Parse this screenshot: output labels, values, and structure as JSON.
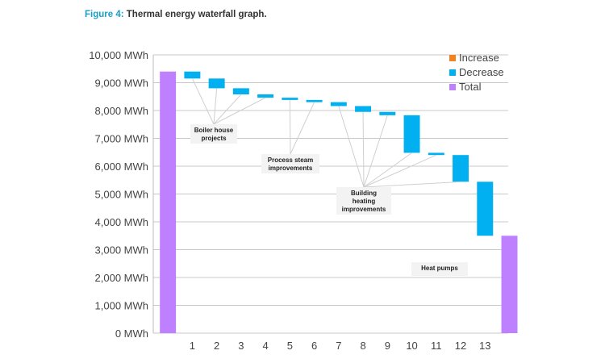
{
  "caption": {
    "figure_label": "Figure 4:",
    "text": "Thermal energy waterfall graph."
  },
  "colors": {
    "increase": "#f58220",
    "decrease": "#00b0f0",
    "total": "#bf80ff",
    "grid": "#c8c8c8",
    "axis_text": "#444444"
  },
  "chart_data": {
    "type": "waterfall",
    "title": "",
    "xlabel": "",
    "ylabel": "",
    "ylim": [
      0,
      10000
    ],
    "y_ticks": [
      "0 MWh",
      "1,000 MWh",
      "2,000 MWh",
      "3,000 MWh",
      "4,000 MWh",
      "5,000 MWh",
      "6,000 MWh",
      "7,000 MWh",
      "8,000 MWh",
      "9,000 MWh",
      "10,000 MWh"
    ],
    "y_tick_values": [
      0,
      1000,
      2000,
      3000,
      4000,
      5000,
      6000,
      7000,
      8000,
      9000,
      10000
    ],
    "grid": true,
    "legend_position": "top-right",
    "legend": [
      {
        "label": "Increase",
        "kind": "increase"
      },
      {
        "label": "Decrease",
        "kind": "decrease"
      },
      {
        "label": "Total",
        "kind": "total"
      }
    ],
    "categories": [
      "",
      "1",
      "2",
      "3",
      "4",
      "5",
      "6",
      "7",
      "8",
      "9",
      "10",
      "11",
      "12",
      "13",
      ""
    ],
    "bars": [
      {
        "kind": "total",
        "start": 0,
        "end": 9400
      },
      {
        "kind": "decrease",
        "start": 9400,
        "end": 9150
      },
      {
        "kind": "decrease",
        "start": 9150,
        "end": 8800
      },
      {
        "kind": "decrease",
        "start": 8800,
        "end": 8580
      },
      {
        "kind": "decrease",
        "start": 8580,
        "end": 8460
      },
      {
        "kind": "decrease",
        "start": 8460,
        "end": 8380
      },
      {
        "kind": "decrease",
        "start": 8380,
        "end": 8300
      },
      {
        "kind": "decrease",
        "start": 8300,
        "end": 8160
      },
      {
        "kind": "decrease",
        "start": 8160,
        "end": 7950
      },
      {
        "kind": "decrease",
        "start": 7950,
        "end": 7830
      },
      {
        "kind": "decrease",
        "start": 7830,
        "end": 6480
      },
      {
        "kind": "decrease",
        "start": 6480,
        "end": 6400
      },
      {
        "kind": "decrease",
        "start": 6400,
        "end": 5440
      },
      {
        "kind": "decrease",
        "start": 5440,
        "end": 3500
      },
      {
        "kind": "total",
        "start": 0,
        "end": 3500
      }
    ],
    "annotations": [
      {
        "lines": [
          "Boiler house",
          "projects"
        ],
        "targets": [
          1,
          2,
          3,
          4
        ]
      },
      {
        "lines": [
          "Process steam",
          "improvements"
        ],
        "targets": [
          5,
          6
        ]
      },
      {
        "lines": [
          "Building",
          "heating",
          "improvements"
        ],
        "targets": [
          7,
          8,
          9,
          10,
          11,
          12
        ]
      },
      {
        "lines": [
          "Heat pumps"
        ],
        "targets": []
      }
    ]
  }
}
